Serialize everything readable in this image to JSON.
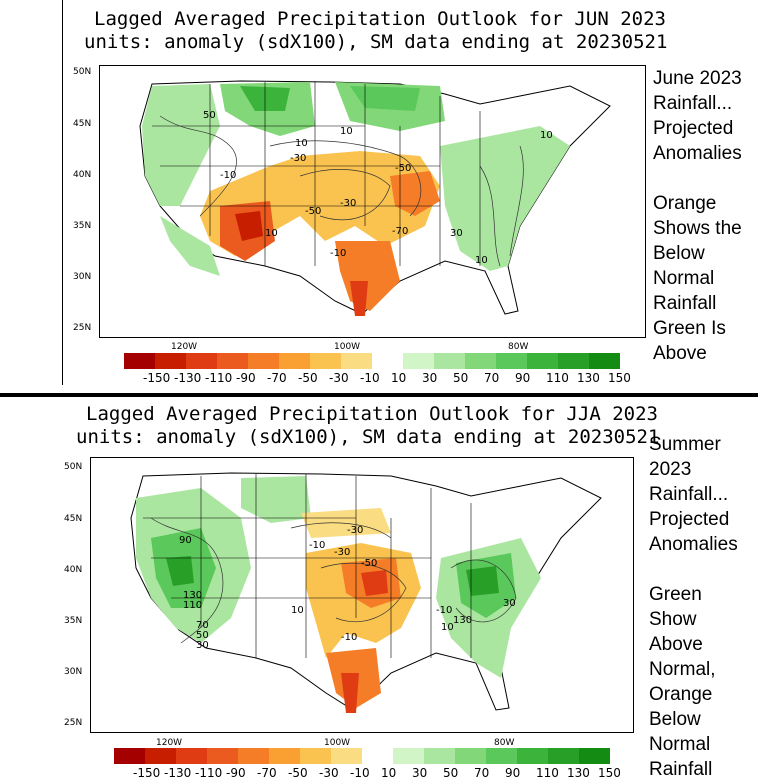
{
  "panel1": {
    "title_line1": "Lagged Averaged Precipitation Outlook for JUN 2023",
    "title_line2": "units: anomaly (sdX100), SM data ending at 20230521",
    "side_text": [
      "June 2023",
      "Rainfall...",
      "Projected",
      "Anomalies",
      "",
      "Orange",
      "Shows the",
      "Below",
      "Normal",
      "Rainfall",
      "Green Is",
      "Above"
    ],
    "lat_labels": [
      "50N",
      "45N",
      "40N",
      "35N",
      "30N",
      "25N"
    ],
    "lon_labels": [
      "120W",
      "100W",
      "80W"
    ],
    "contour_labels": [
      "50",
      "10",
      "10",
      "-30",
      "-10",
      "-50",
      "-30",
      "-50",
      "-70",
      "10",
      "-10",
      "30",
      "10",
      "10"
    ]
  },
  "panel2": {
    "title_line1": "Lagged Averaged Precipitation Outlook for JJA 2023",
    "title_line2": "units: anomaly (sdX100), SM data ending at 20230521",
    "side_text": [
      "Summer",
      "2023",
      "Rainfall...",
      "Projected",
      "Anomalies",
      "",
      "Green",
      "Show",
      "Above",
      "Normal,",
      "Orange",
      "Below",
      "Normal",
      "Rainfall"
    ],
    "lat_labels": [
      "50N",
      "45N",
      "40N",
      "35N",
      "30N",
      "25N"
    ],
    "lon_labels": [
      "120W",
      "100W",
      "80W"
    ],
    "contour_labels": [
      "90",
      "130",
      "110",
      "70",
      "50",
      "30",
      "-30",
      "-10",
      "-30",
      "-50",
      "10",
      "-10",
      "10",
      "130",
      "30",
      "-10"
    ]
  },
  "colorbar": {
    "labels": [
      "-150",
      "-130",
      "-110",
      "-90",
      "-70",
      "-50",
      "-30",
      "-10",
      "10",
      "30",
      "50",
      "70",
      "90",
      "110",
      "130",
      "150"
    ],
    "colors": [
      "#a50000",
      "#c81e00",
      "#e03c14",
      "#eb5a1e",
      "#f57d28",
      "#faa032",
      "#fac350",
      "#fadc82",
      "#ffffff",
      "#d2f5c8",
      "#aae6a0",
      "#82d778",
      "#5ac85a",
      "#3cb43c",
      "#28a028",
      "#148c14"
    ]
  }
}
